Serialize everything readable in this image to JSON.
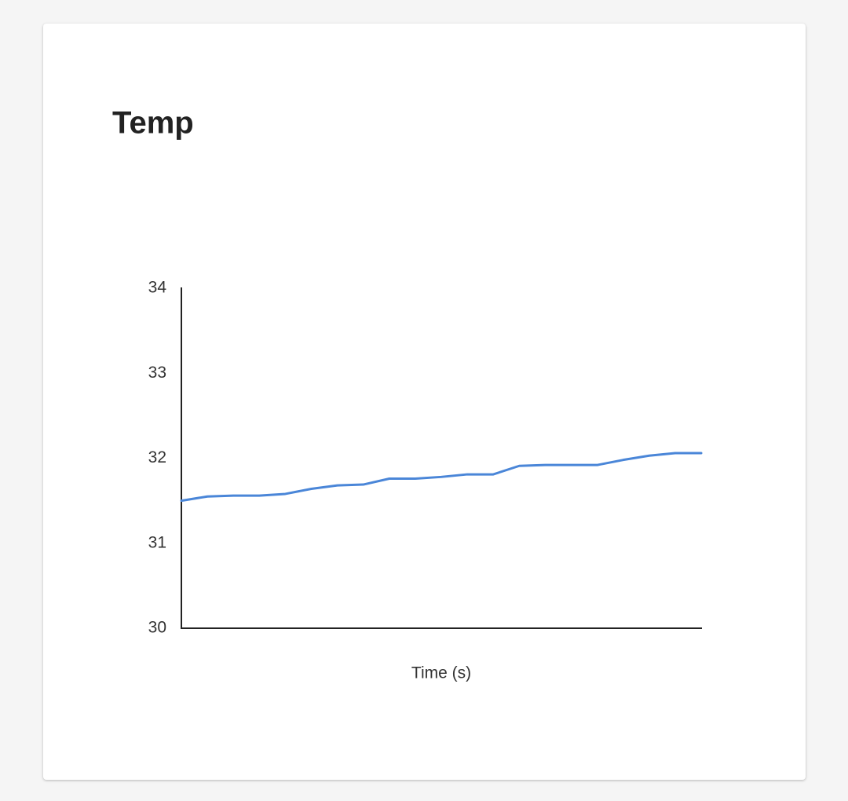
{
  "chart_data": {
    "type": "line",
    "title": "Temp",
    "xlabel": "Time (s)",
    "categories": [
      null,
      null,
      null,
      null,
      null,
      null,
      null,
      null,
      null,
      null,
      null,
      null,
      null,
      null,
      null,
      null,
      null,
      null,
      null,
      null,
      null
    ],
    "series": [
      {
        "name": null,
        "color": "#4a86d8",
        "values": [
          31.5,
          31.55,
          31.56,
          31.56,
          31.58,
          31.64,
          31.68,
          31.69,
          31.76,
          31.76,
          31.78,
          31.81,
          31.81,
          31.91,
          31.92,
          31.92,
          31.92,
          31.98,
          32.03,
          32.06,
          32.06
        ]
      }
    ],
    "ylim": [
      30,
      34
    ],
    "yticks": [
      30,
      31,
      32,
      33,
      34
    ],
    "grid": false
  }
}
